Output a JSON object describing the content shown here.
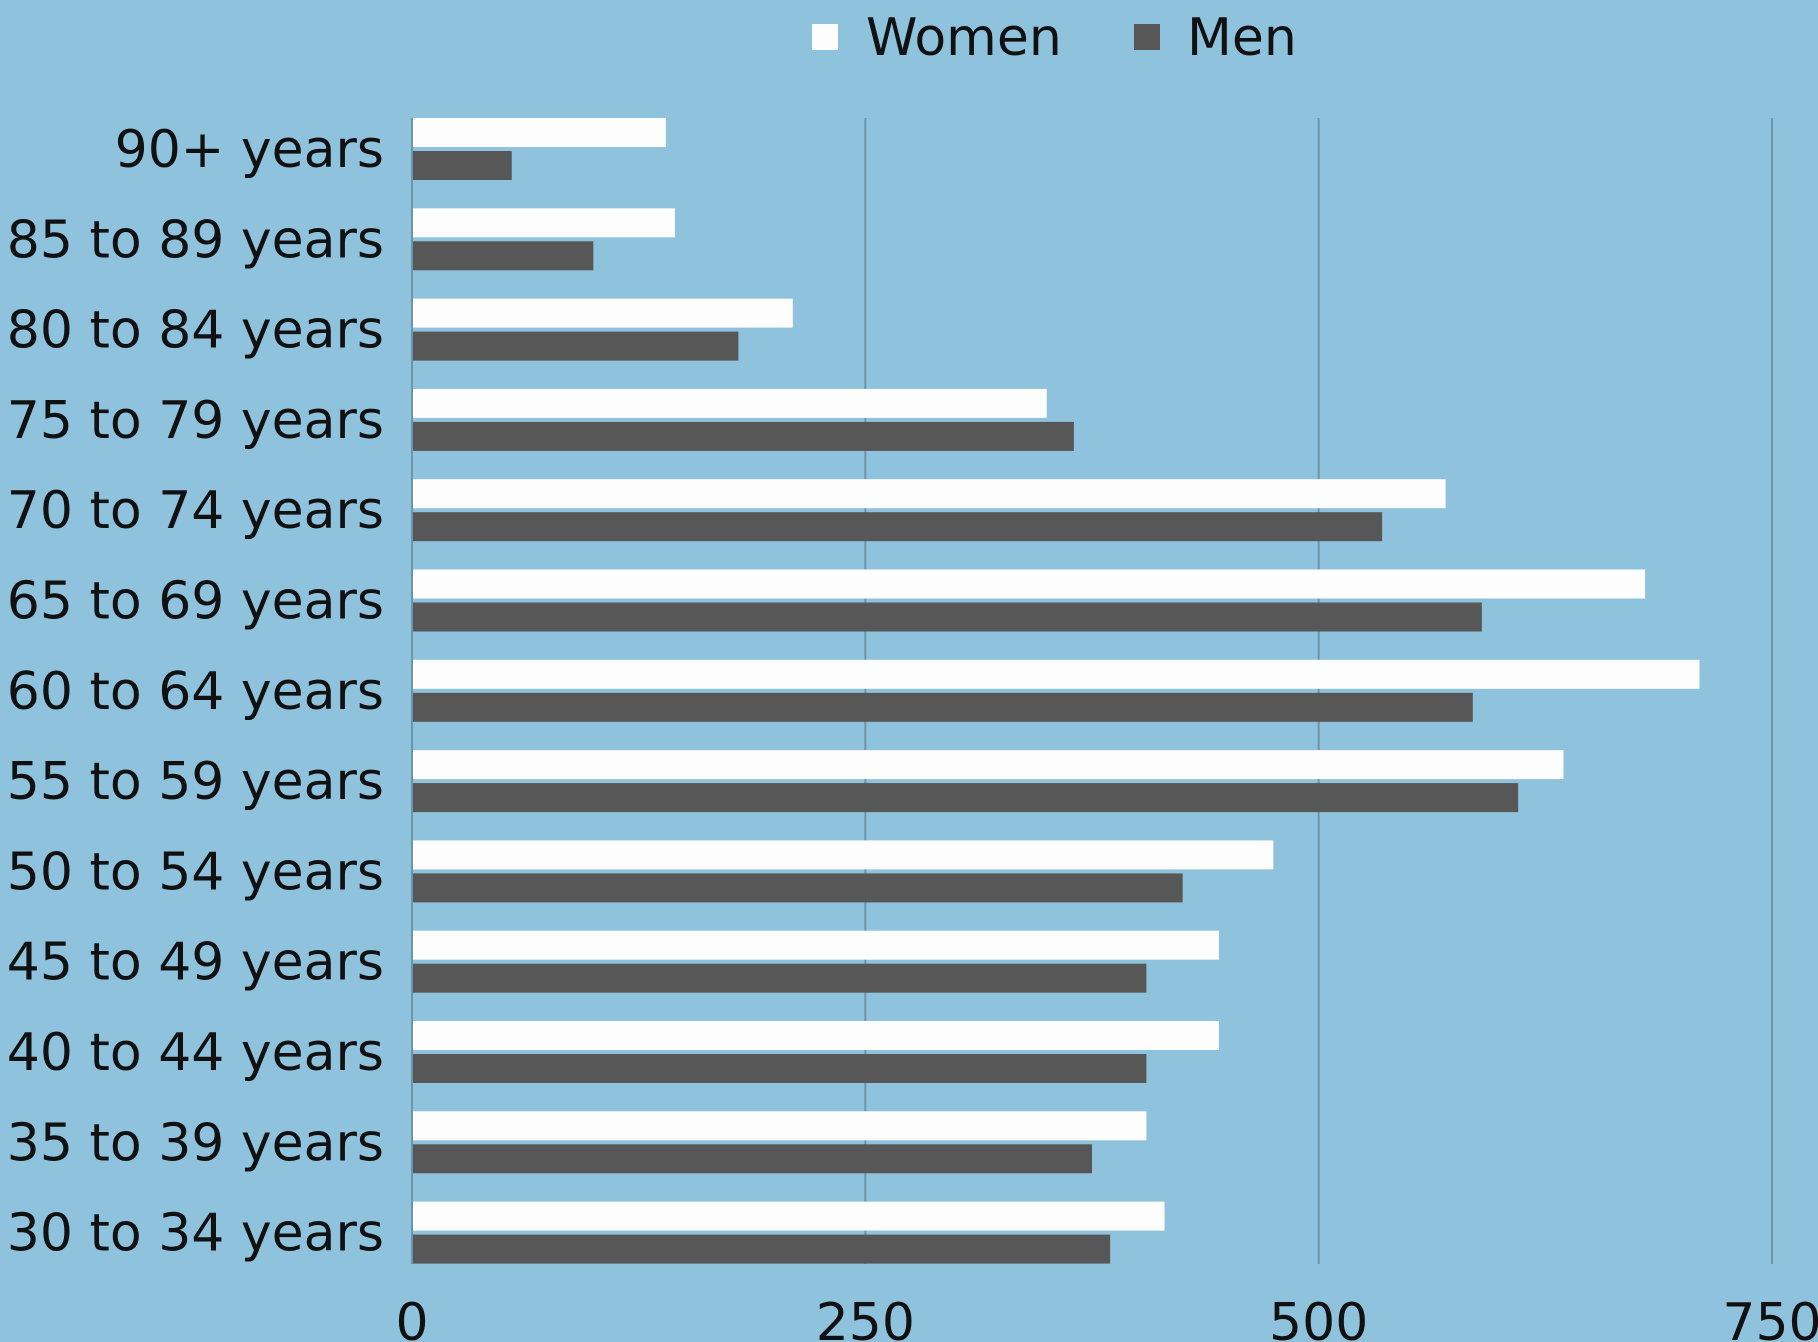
{
  "chart_data": {
    "type": "bar",
    "orientation": "horizontal",
    "title": "",
    "xlabel": "",
    "ylabel": "",
    "categories": [
      "90+ years",
      "85 to 89 years",
      "80 to 84 years",
      "75 to 79 years",
      "70 to 74 years",
      "65 to 69 years",
      "60 to 64 years",
      "55 to 59 years",
      "50 to 54 years",
      "45 to 49 years",
      "40 to 44 years",
      "35 to 39 years",
      "30 to 34 years"
    ],
    "series": [
      {
        "name": "Women",
        "color": "#fdfdfd",
        "values": [
          140,
          145,
          210,
          350,
          570,
          680,
          710,
          635,
          475,
          445,
          445,
          405,
          415
        ]
      },
      {
        "name": "Men",
        "color": "#575757",
        "values": [
          55,
          100,
          180,
          365,
          535,
          590,
          585,
          610,
          425,
          405,
          405,
          375,
          385
        ]
      }
    ],
    "xlim": [
      0,
      750
    ],
    "xticks": [
      0,
      250,
      500,
      750
    ],
    "grid": true,
    "legend": "top-center",
    "colors": {
      "background": "#8fc3dd",
      "grid": "#6d95a8",
      "text": "#111111"
    }
  }
}
